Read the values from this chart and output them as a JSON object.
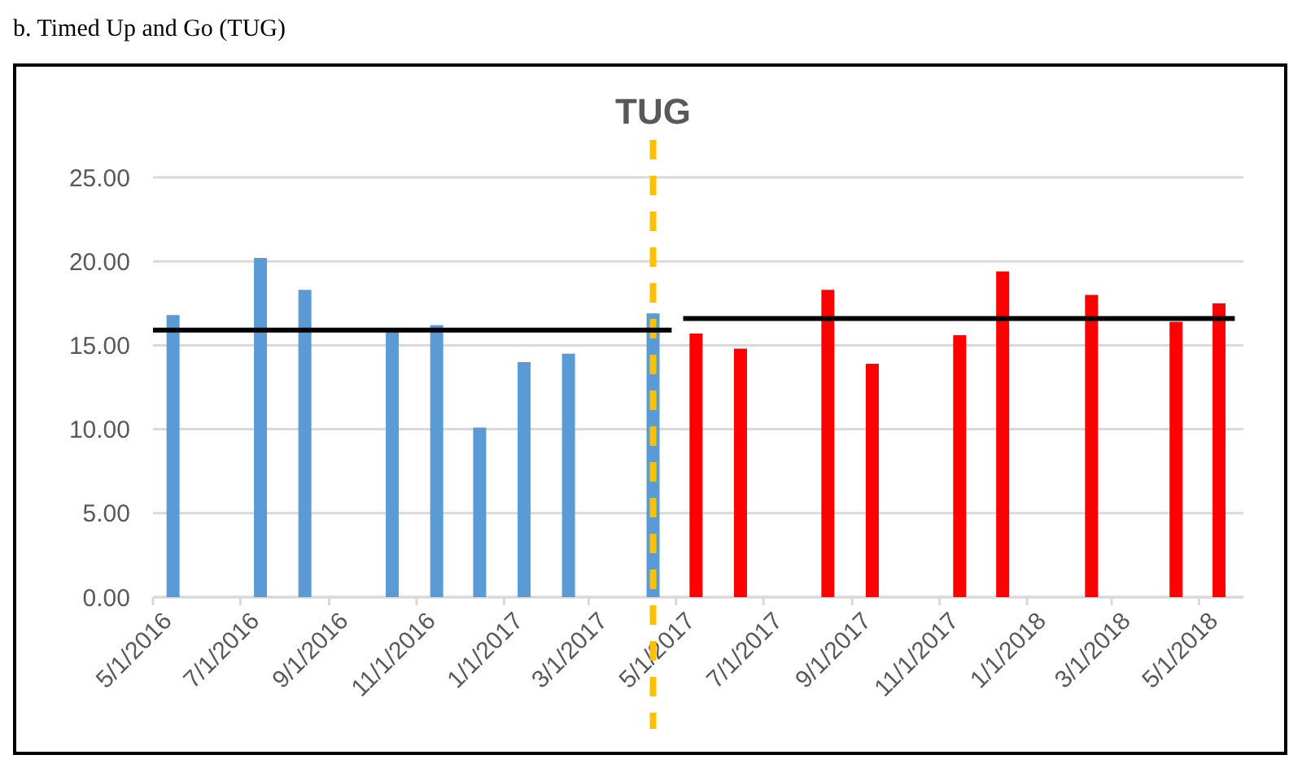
{
  "chart_data": {
    "type": "bar",
    "title": "b. Timed Up and Go (TUG)",
    "series": [
      {
        "color": "#5b9bd5",
        "x": [
          "2016-05-15",
          "2016-07-15",
          "2016-08-15",
          "2016-10-15",
          "2016-11-15",
          "2016-12-15",
          "2017-01-15",
          "2017-02-15",
          "2017-04-15"
        ],
        "values": [
          16.8,
          20.2,
          18.3,
          15.9,
          16.2,
          10.1,
          14.0,
          14.5,
          16.9
        ]
      },
      {
        "color": "#ff0000",
        "x": [
          "2017-05-15",
          "2017-06-15",
          "2017-08-15",
          "2017-09-15",
          "2017-11-15",
          "2017-12-15",
          "2018-02-15",
          "2018-04-15",
          "2018-05-15"
        ],
        "values": [
          15.7,
          14.8,
          18.3,
          13.9,
          15.6,
          19.4,
          18.0,
          16.4,
          17.5
        ]
      },
      {
        "type": "line",
        "color": "#000000",
        "x": [
          "2016-05-01",
          "2017-04-28"
        ],
        "values": [
          15.9,
          15.9
        ]
      },
      {
        "type": "line",
        "color": "#000000",
        "x": [
          "2017-05-06",
          "2018-05-26"
        ],
        "values": [
          16.6,
          16.6
        ]
      }
    ],
    "xlim": [
      "2016-05-01",
      "2018-06-01"
    ],
    "xticks": [
      {
        "value": "2016-05-01",
        "label": "5/1/2016"
      },
      {
        "value": "2016-07-01",
        "label": "7/1/2016"
      },
      {
        "value": "2016-09-01",
        "label": "9/1/2016"
      },
      {
        "value": "2016-11-01",
        "label": "11/1/2016"
      },
      {
        "value": "2017-01-01",
        "label": "1/1/2017"
      },
      {
        "value": "2017-03-01",
        "label": "3/1/2017"
      },
      {
        "value": "2017-05-01",
        "label": "5/1/2017"
      },
      {
        "value": "2017-07-01",
        "label": "7/1/2017"
      },
      {
        "value": "2017-09-01",
        "label": "9/1/2017"
      },
      {
        "value": "2017-11-01",
        "label": "11/1/2017"
      },
      {
        "value": "2018-01-01",
        "label": "1/1/2018"
      },
      {
        "value": "2018-03-01",
        "label": "3/1/2018"
      },
      {
        "value": "2018-05-01",
        "label": "5/1/2018"
      }
    ],
    "ylim": [
      0,
      25
    ],
    "yticks": [
      {
        "value": 0,
        "label": "0.00"
      },
      {
        "value": 5,
        "label": "5.00"
      },
      {
        "value": 10,
        "label": "10.00"
      },
      {
        "value": 15,
        "label": "15.00"
      },
      {
        "value": 20,
        "label": "20.00"
      },
      {
        "value": 25,
        "label": "25.00"
      }
    ],
    "grid": "y",
    "ref_lines": [
      {
        "axis": "x",
        "value": "2017-04-15",
        "label": "TUG",
        "color": "#ffc000",
        "line_style": "dashed"
      }
    ]
  }
}
